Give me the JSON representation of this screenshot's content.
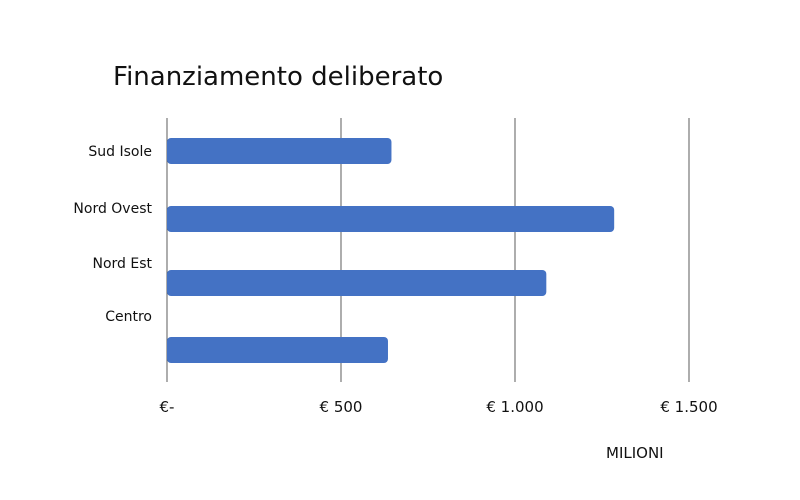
{
  "chart_data": {
    "type": "bar",
    "orientation": "horizontal",
    "title": "Finanziamento deliberato",
    "unit_label": "MILIONI",
    "categories": [
      "Sud Isole",
      "Nord Ovest",
      "Nord Est",
      "Centro"
    ],
    "series": [
      {
        "values": [
          645,
          1285,
          1090,
          635
        ]
      }
    ],
    "xlim": [
      0,
      1500
    ],
    "x_ticks": [
      0,
      500,
      1000,
      1500
    ],
    "x_tick_labels": [
      "€-",
      "€ 500",
      "€ 1.000",
      "€ 1.500"
    ],
    "grid": "vertical",
    "legend": "none",
    "bar_color": "#4472C4",
    "gridline_color": "#333333"
  }
}
